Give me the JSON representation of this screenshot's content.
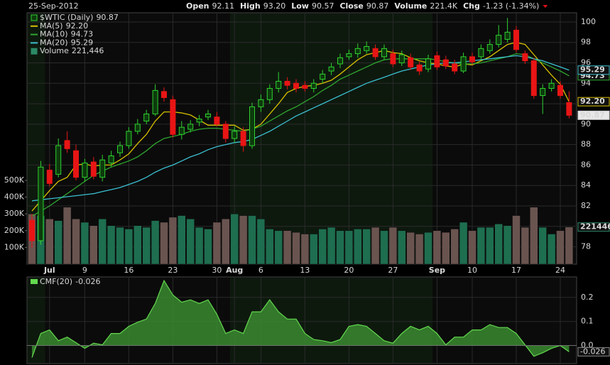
{
  "header": {
    "date": "25-Sep-2012",
    "quote": [
      {
        "label": "Open",
        "value": "92.11"
      },
      {
        "label": "High",
        "value": "93.20"
      },
      {
        "label": "Low",
        "value": "90.57"
      },
      {
        "label": "Close",
        "value": "90.87"
      },
      {
        "label": "Volume",
        "value": "221.4K"
      },
      {
        "label": "Chg",
        "value": "-1.23 (-1.34%)"
      }
    ]
  },
  "chart_data": [
    {
      "type": "candlestick",
      "name": "$WTIC (Daily)",
      "last_label": "90.87",
      "categories": [
        null,
        null,
        "Jul",
        null,
        null,
        null,
        "9",
        null,
        null,
        null,
        null,
        "16",
        null,
        null,
        null,
        null,
        "23",
        null,
        null,
        null,
        null,
        "30",
        null,
        "Aug",
        null,
        null,
        "6",
        null,
        null,
        null,
        null,
        "13",
        null,
        null,
        null,
        null,
        "20",
        null,
        null,
        null,
        null,
        "27",
        null,
        null,
        null,
        null,
        "Sep",
        null,
        null,
        null,
        "10",
        null,
        null,
        null,
        null,
        "17",
        null,
        null,
        null,
        null,
        "24",
        null
      ],
      "open": [
        80.6,
        78.6,
        85.5,
        85.1,
        88.4,
        87.4,
        84.8,
        86.3,
        84.8,
        86.2,
        87.2,
        87.9,
        89.3,
        90.3,
        91.0,
        93.2,
        92.4,
        89.0,
        89.5,
        90.2,
        90.7,
        90.7,
        90.0,
        88.6,
        89.3,
        87.9,
        91.7,
        92.4,
        93.5,
        94.2,
        94.0,
        93.8,
        93.5,
        94.4,
        95.2,
        95.9,
        96.6,
        96.9,
        97.2,
        97.4,
        96.6,
        96.9,
        96.0,
        96.5,
        95.8,
        95.4,
        96.7,
        96.3,
        95.9,
        95.2,
        96.6,
        96.6,
        97.2,
        97.8,
        98.3,
        99.2,
        96.9,
        96.2,
        92.8,
        93.5,
        93.8,
        92.11
      ],
      "high": [
        81.2,
        86.4,
        86.1,
        88.6,
        89.3,
        88.0,
        86.6,
        86.8,
        87.0,
        87.4,
        88.3,
        89.7,
        90.5,
        91.4,
        93.9,
        93.6,
        92.8,
        90.3,
        90.4,
        90.9,
        91.4,
        91.2,
        90.3,
        89.8,
        89.7,
        92.1,
        92.9,
        93.9,
        95.1,
        94.6,
        94.4,
        94.2,
        94.4,
        95.3,
        96.0,
        96.9,
        97.3,
        97.9,
        98.1,
        97.8,
        97.8,
        97.3,
        97.2,
        96.9,
        96.1,
        96.8,
        97.1,
        96.7,
        96.3,
        97.0,
        97.0,
        97.8,
        98.3,
        99.7,
        100.4,
        99.6,
        97.2,
        96.5,
        93.9,
        94.4,
        94.2,
        93.2
      ],
      "low": [
        77.9,
        78.2,
        83.9,
        84.8,
        87.2,
        84.5,
        84.4,
        84.6,
        84.4,
        85.8,
        86.8,
        87.6,
        89.0,
        90.0,
        90.8,
        92.2,
        88.7,
        88.5,
        89.2,
        89.8,
        90.4,
        89.8,
        88.2,
        88.2,
        87.3,
        87.6,
        91.2,
        92.0,
        93.1,
        93.4,
        93.1,
        93.2,
        93.1,
        94.0,
        94.8,
        95.5,
        96.3,
        96.5,
        96.9,
        96.3,
        96.3,
        95.6,
        95.7,
        95.3,
        94.8,
        95.1,
        95.3,
        95.4,
        94.9,
        95.0,
        95.8,
        96.3,
        96.9,
        97.5,
        98.0,
        97.0,
        95.9,
        92.5,
        91.0,
        93.2,
        92.5,
        90.57
      ],
      "close": [
        78.6,
        85.8,
        84.2,
        87.9,
        87.6,
        84.8,
        86.2,
        84.9,
        86.5,
        86.9,
        87.9,
        89.3,
        90.0,
        91.0,
        93.3,
        92.6,
        89.0,
        89.7,
        90.0,
        90.5,
        91.0,
        90.0,
        88.6,
        89.3,
        87.9,
        91.7,
        92.4,
        93.5,
        94.2,
        93.8,
        93.5,
        93.5,
        94.0,
        94.9,
        95.6,
        96.5,
        96.9,
        97.4,
        97.6,
        96.6,
        97.4,
        95.9,
        96.8,
        95.6,
        95.2,
        96.4,
        95.6,
        95.7,
        95.2,
        96.6,
        96.1,
        97.4,
        97.8,
        98.7,
        99.0,
        97.3,
        96.2,
        92.8,
        93.5,
        94.0,
        92.8,
        90.87
      ],
      "up_color": "#2fd12f",
      "down_color": "#e81515",
      "ylim": [
        76.3,
        100.9
      ],
      "yticks": [
        78,
        80,
        82,
        84,
        86,
        88,
        90,
        92,
        94,
        96,
        98,
        100
      ],
      "grid": true,
      "series": [
        {
          "name": "MA(5)",
          "color": "#d6c000",
          "last_label": "92.20",
          "values": [
            81.5,
            82.5,
            83.5,
            84.4,
            84.8,
            86.0,
            86.1,
            85.9,
            86.0,
            86.0,
            86.5,
            87.1,
            88.1,
            89.0,
            90.3,
            91.2,
            91.2,
            91.1,
            90.9,
            90.4,
            89.9,
            89.9,
            89.9,
            89.9,
            89.4,
            89.5,
            90.0,
            91.0,
            92.0,
            93.1,
            93.5,
            93.7,
            93.8,
            94.0,
            94.3,
            94.9,
            95.6,
            96.3,
            96.8,
            97.0,
            97.2,
            97.0,
            96.9,
            96.5,
            96.2,
            96.0,
            95.9,
            95.7,
            95.6,
            95.9,
            95.8,
            96.2,
            96.6,
            97.2,
            97.8,
            98.0,
            97.8,
            96.8,
            95.8,
            94.8,
            93.9,
            92.2
          ]
        },
        {
          "name": "MA(10)",
          "color": "#2ea52e",
          "last_label": "94.73",
          "values": [
            81.0,
            81.5,
            82.0,
            82.6,
            83.2,
            83.8,
            84.4,
            85.0,
            85.4,
            85.8,
            86.1,
            86.4,
            86.8,
            87.4,
            88.1,
            88.6,
            88.8,
            89.0,
            89.3,
            89.5,
            89.6,
            89.6,
            89.5,
            89.4,
            89.3,
            89.5,
            89.8,
            90.3,
            90.8,
            91.3,
            91.7,
            92.2,
            92.7,
            93.3,
            93.8,
            94.4,
            94.8,
            95.2,
            95.6,
            96.0,
            96.3,
            96.4,
            96.4,
            96.4,
            96.4,
            96.4,
            96.3,
            96.1,
            96.0,
            95.9,
            95.9,
            96.0,
            96.2,
            96.4,
            96.6,
            96.9,
            96.8,
            96.4,
            96.0,
            95.6,
            95.2,
            94.73
          ]
        },
        {
          "name": "MA(20)",
          "color": "#3bbfd0",
          "last_label": "95.29",
          "values": [
            82.5,
            82.6,
            82.7,
            82.8,
            82.9,
            83.0,
            83.1,
            83.2,
            83.4,
            83.6,
            83.8,
            84.1,
            84.4,
            84.8,
            85.3,
            85.7,
            86.0,
            86.4,
            86.8,
            87.1,
            87.5,
            87.8,
            88.0,
            88.2,
            88.3,
            88.5,
            88.9,
            89.3,
            89.8,
            90.3,
            90.8,
            91.2,
            91.6,
            92.0,
            92.4,
            92.8,
            93.2,
            93.6,
            94.0,
            94.3,
            94.6,
            94.9,
            95.2,
            95.4,
            95.6,
            95.8,
            95.9,
            96.0,
            96.0,
            96.1,
            96.2,
            96.3,
            96.4,
            96.5,
            96.6,
            96.7,
            96.6,
            96.4,
            96.2,
            95.9,
            95.6,
            95.29
          ]
        }
      ],
      "volume": {
        "name": "Volume",
        "last_label": "221,446",
        "box_label": "221446",
        "up_color": "#1e6e50",
        "down_color": "#6a5450",
        "values": [
          300000,
          290000,
          270000,
          260000,
          340000,
          270000,
          250000,
          230000,
          270000,
          230000,
          220000,
          210000,
          230000,
          220000,
          260000,
          250000,
          280000,
          290000,
          270000,
          220000,
          210000,
          250000,
          270000,
          300000,
          290000,
          290000,
          270000,
          210000,
          200000,
          200000,
          190000,
          180000,
          180000,
          210000,
          220000,
          200000,
          200000,
          210000,
          210000,
          220000,
          200000,
          220000,
          200000,
          190000,
          180000,
          190000,
          200000,
          190000,
          210000,
          250000,
          200000,
          220000,
          220000,
          240000,
          230000,
          290000,
          220000,
          340000,
          220000,
          180000,
          200000,
          221446
        ],
        "ylim": [
          0,
          1500000
        ],
        "yticks": [
          {
            "value": 100000,
            "label": "100K"
          },
          {
            "value": 200000,
            "label": "200K"
          },
          {
            "value": 300000,
            "label": "300K"
          },
          {
            "value": 400000,
            "label": "400K"
          },
          {
            "value": 500000,
            "label": "500K"
          }
        ]
      }
    },
    {
      "type": "area",
      "name": "CMF(20)",
      "last_label": "-0.026",
      "color": "#3a8a30",
      "line_color": "#63d84e",
      "values": [
        -0.05,
        0.05,
        0.065,
        0.02,
        0.035,
        0.012,
        -0.012,
        0.01,
        0.003,
        0.05,
        0.05,
        0.08,
        0.097,
        0.11,
        0.175,
        0.27,
        0.21,
        0.18,
        0.19,
        0.175,
        0.19,
        0.13,
        0.05,
        0.065,
        0.05,
        0.14,
        0.14,
        0.19,
        0.14,
        0.11,
        0.11,
        0.05,
        0.025,
        0.02,
        0.012,
        0.025,
        0.08,
        0.087,
        0.08,
        0.05,
        0.02,
        0.01,
        0.05,
        0.08,
        0.065,
        0.08,
        0.05,
        0.003,
        0.035,
        0.035,
        0.065,
        0.065,
        0.087,
        0.075,
        0.075,
        0.05,
        0.003,
        -0.045,
        -0.03,
        -0.012,
        0.0,
        -0.026
      ],
      "ylim": [
        -0.075,
        0.285
      ],
      "yticks": [
        {
          "value": 0,
          "label": "0.0"
        },
        0.1,
        0.2
      ],
      "grid": true
    }
  ]
}
